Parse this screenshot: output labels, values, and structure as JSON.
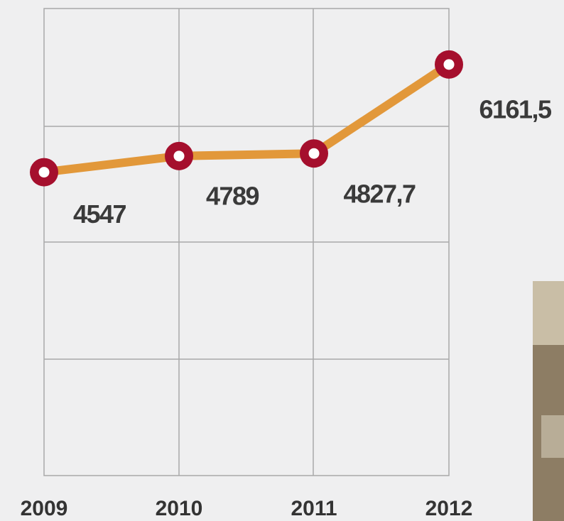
{
  "chart_data": {
    "type": "line",
    "categories": [
      "2009",
      "2010",
      "2011",
      "2012"
    ],
    "series": [
      {
        "color": "#e2983a",
        "marker_color": "#a50f2d",
        "values": [
          4547,
          4789,
          4827.7,
          6161.5
        ],
        "value_labels": [
          "4547",
          "4789",
          "4827,7",
          "6161,5"
        ]
      }
    ],
    "ylim": [
      0,
      7000
    ],
    "grid": true
  }
}
